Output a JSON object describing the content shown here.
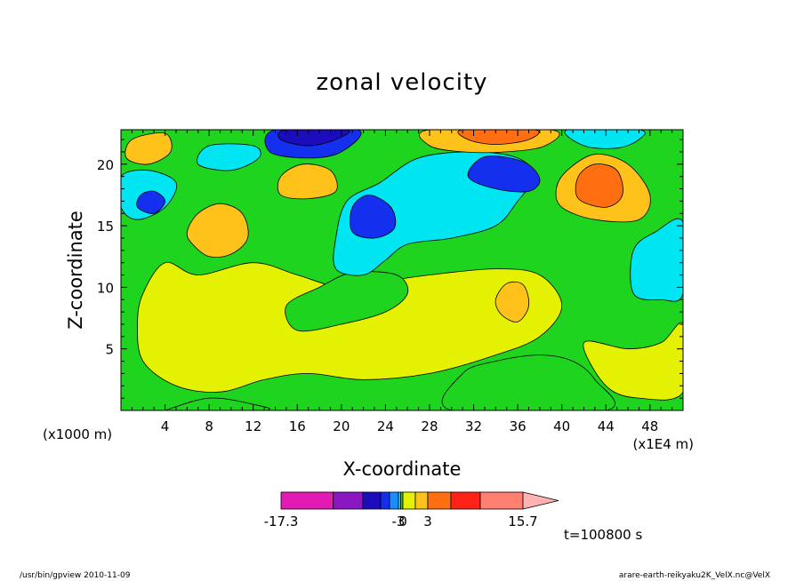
{
  "chart_data": {
    "type": "heatmap",
    "subtype": "filled-contour",
    "title": "zonal velocity",
    "xlabel": "X-coordinate",
    "ylabel": "Z-coordinate",
    "x_unit_left": "(x1000 m)",
    "x_unit_right": "(x1E4 m)",
    "xlim": [
      0,
      51
    ],
    "ylim": [
      0,
      22.8
    ],
    "x_ticks": [
      4,
      8,
      12,
      16,
      20,
      24,
      28,
      32,
      36,
      40,
      44,
      48
    ],
    "y_ticks": [
      5,
      10,
      15,
      20
    ],
    "colorbar": {
      "labels": [
        {
          "value": -17.3,
          "text": "-17.3"
        },
        {
          "value": -3,
          "text": "-3"
        },
        {
          "value": 0,
          "text": "0"
        },
        {
          "value": 3,
          "text": "3"
        },
        {
          "value": 15.7,
          "text": "15.7"
        }
      ],
      "bins": [
        {
          "from": -17.3,
          "to": -12,
          "color": "#e21bb3"
        },
        {
          "from": -12,
          "to": -9,
          "color": "#8a17c1"
        },
        {
          "from": -9,
          "to": -6,
          "color": "#1b0dbb"
        },
        {
          "from": -6,
          "to": -4.5,
          "color": "#1430ee"
        },
        {
          "from": -4.5,
          "to": -3,
          "color": "#1c8bff"
        },
        {
          "from": -3,
          "to": -1.5,
          "color": "#00e5f2"
        },
        {
          "from": -1.5,
          "to": 0,
          "color": "#1ed41e"
        },
        {
          "from": 0,
          "to": 1.5,
          "color": "#e4f100"
        },
        {
          "from": 1.5,
          "to": 3,
          "color": "#ffc21b"
        },
        {
          "from": 3,
          "to": 6,
          "color": "#ff6f12"
        },
        {
          "from": 6,
          "to": 9,
          "color": "#ff2216"
        },
        {
          "from": 9,
          "to": 15.7,
          "color": "#ff7f70"
        }
      ],
      "extend_color": "#ffb3b0"
    },
    "time_label": "t=100800 s",
    "regions": [
      {
        "level": 1.5,
        "color": "#e4f100",
        "path": [
          [
            4,
            12
          ],
          [
            7,
            11
          ],
          [
            12,
            12
          ],
          [
            16,
            11
          ],
          [
            20,
            10
          ],
          [
            24,
            10.5
          ],
          [
            28,
            11
          ],
          [
            34,
            11.5
          ],
          [
            38,
            11
          ],
          [
            40,
            8.5
          ],
          [
            38,
            6
          ],
          [
            34,
            4.5
          ],
          [
            28,
            3
          ],
          [
            22,
            2.5
          ],
          [
            17,
            3
          ],
          [
            13,
            2.5
          ],
          [
            9,
            1.5
          ],
          [
            5,
            2
          ],
          [
            2,
            4
          ],
          [
            1.5,
            7
          ],
          [
            2,
            9.5
          ]
        ]
      },
      {
        "level": 1.5,
        "color": "#e4f100",
        "path": [
          [
            42,
            5.5
          ],
          [
            46,
            5
          ],
          [
            49,
            5.5
          ],
          [
            51,
            7
          ],
          [
            51,
            1.5
          ],
          [
            47,
            1
          ],
          [
            44,
            2
          ]
        ]
      },
      {
        "level": -1.5,
        "color": "#1ed41e",
        "path": [
          [
            16,
            6.5
          ],
          [
            20,
            7
          ],
          [
            24,
            8
          ],
          [
            26,
            9.5
          ],
          [
            25,
            11
          ],
          [
            21,
            11.2
          ],
          [
            18,
            10
          ],
          [
            15,
            8.5
          ]
        ]
      },
      {
        "level": -1.5,
        "color": "#1ed41e",
        "path": [
          [
            30,
            0
          ],
          [
            31,
            3
          ],
          [
            34,
            4
          ],
          [
            38,
            4.5
          ],
          [
            41,
            4
          ],
          [
            43,
            2.5
          ],
          [
            44,
            0
          ]
        ]
      },
      {
        "level": -1.5,
        "color": "#1ed41e",
        "path": [
          [
            4,
            0
          ],
          [
            8,
            1
          ],
          [
            12,
            0.5
          ],
          [
            13,
            0
          ],
          [
            4,
            0
          ]
        ]
      },
      {
        "level": 3,
        "color": "#ffc21b",
        "path": [
          [
            6.5,
            13.5
          ],
          [
            8,
            12.5
          ],
          [
            10,
            12.7
          ],
          [
            11.5,
            14
          ],
          [
            11,
            16
          ],
          [
            9,
            16.8
          ],
          [
            7,
            16
          ],
          [
            6,
            14.5
          ]
        ]
      },
      {
        "level": 3,
        "color": "#ffc21b",
        "path": [
          [
            34.5,
            7.8
          ],
          [
            36,
            7.2
          ],
          [
            37,
            8.5
          ],
          [
            36.5,
            10.2
          ],
          [
            35,
            10.3
          ],
          [
            34,
            9
          ]
        ]
      },
      {
        "level": 3,
        "color": "#ffc21b",
        "path": [
          [
            40,
            16.5
          ],
          [
            43,
            15.5
          ],
          [
            47,
            15.5
          ],
          [
            48,
            17.5
          ],
          [
            46,
            20
          ],
          [
            43,
            20.8
          ],
          [
            40.5,
            19.5
          ],
          [
            39.5,
            18
          ]
        ]
      },
      {
        "level": 3,
        "color": "#ffc21b",
        "path": [
          [
            14.5,
            17.5
          ],
          [
            17,
            17.2
          ],
          [
            19.5,
            17.8
          ],
          [
            19,
            19.5
          ],
          [
            16.5,
            20
          ],
          [
            14.5,
            19
          ]
        ]
      },
      {
        "level": 6,
        "color": "#ff6f12",
        "path": [
          [
            41.5,
            17.2
          ],
          [
            44,
            16.5
          ],
          [
            45.5,
            17.5
          ],
          [
            45,
            19.5
          ],
          [
            43,
            20
          ],
          [
            41.5,
            19
          ]
        ]
      },
      {
        "level": -3,
        "color": "#00e5f2",
        "path": [
          [
            19.5,
            11.5
          ],
          [
            22,
            11
          ],
          [
            24,
            12.2
          ],
          [
            26,
            13.5
          ],
          [
            30,
            14
          ],
          [
            34,
            15
          ],
          [
            36,
            17
          ],
          [
            37.5,
            19
          ],
          [
            36,
            20.5
          ],
          [
            32,
            21
          ],
          [
            27,
            20.5
          ],
          [
            23.5,
            18.5
          ],
          [
            20.5,
            17
          ],
          [
            19.5,
            14
          ]
        ]
      },
      {
        "level": -3,
        "color": "#00e5f2",
        "path": [
          [
            46.5,
            9.5
          ],
          [
            49,
            9
          ],
          [
            51,
            9.5
          ],
          [
            51,
            15.3
          ],
          [
            48.5,
            14.5
          ],
          [
            46.5,
            13
          ]
        ]
      },
      {
        "level": -3,
        "color": "#00e5f2",
        "path": [
          [
            0,
            16.5
          ],
          [
            1.5,
            15.5
          ],
          [
            4,
            16.5
          ],
          [
            5,
            18.5
          ],
          [
            2.5,
            19.5
          ],
          [
            0,
            19
          ]
        ]
      },
      {
        "level": -3,
        "color": "#00e5f2",
        "path": [
          [
            7,
            20
          ],
          [
            10,
            19.5
          ],
          [
            12.5,
            20.5
          ],
          [
            12,
            21.5
          ],
          [
            8,
            21.5
          ]
        ]
      },
      {
        "level": -3,
        "color": "#00e5f2",
        "path": [
          [
            40.5,
            22.8
          ],
          [
            42,
            21.5
          ],
          [
            45,
            21.3
          ],
          [
            47,
            22
          ],
          [
            47,
            22.8
          ]
        ]
      },
      {
        "level": -6,
        "color": "#1430ee",
        "path": [
          [
            21,
            14.5
          ],
          [
            23,
            14
          ],
          [
            24.8,
            14.8
          ],
          [
            24.5,
            16.5
          ],
          [
            22.5,
            17.5
          ],
          [
            21,
            16.5
          ]
        ]
      },
      {
        "level": -6,
        "color": "#1430ee",
        "path": [
          [
            31.5,
            19
          ],
          [
            34,
            18
          ],
          [
            37,
            17.8
          ],
          [
            38,
            18.8
          ],
          [
            36.5,
            20.2
          ],
          [
            33,
            20.6
          ]
        ]
      },
      {
        "level": -6,
        "color": "#1430ee",
        "path": [
          [
            1.5,
            16.5
          ],
          [
            3,
            16
          ],
          [
            4,
            17
          ],
          [
            3,
            17.8
          ],
          [
            1.8,
            17.5
          ]
        ]
      },
      {
        "level": -6,
        "color": "#1430ee",
        "path": [
          [
            13.5,
            21
          ],
          [
            17,
            20.5
          ],
          [
            20,
            21
          ],
          [
            21.5,
            22.8
          ],
          [
            14,
            22.8
          ]
        ]
      },
      {
        "level": -9,
        "color": "#1b0dbb",
        "path": [
          [
            14.5,
            22
          ],
          [
            17,
            21.5
          ],
          [
            19.5,
            22
          ],
          [
            20.5,
            22.8
          ],
          [
            15,
            22.8
          ]
        ]
      },
      {
        "level": 3,
        "color": "#ffc21b",
        "path": [
          [
            28,
            21.5
          ],
          [
            31,
            21
          ],
          [
            35,
            21
          ],
          [
            38.5,
            21.5
          ],
          [
            39,
            22.8
          ],
          [
            28,
            22.8
          ]
        ]
      },
      {
        "level": 3,
        "color": "#ffc21b",
        "path": [
          [
            0.5,
            20.5
          ],
          [
            2.5,
            20
          ],
          [
            4.5,
            21
          ],
          [
            4,
            22.5
          ],
          [
            1,
            22
          ]
        ]
      },
      {
        "level": 6,
        "color": "#ff6f12",
        "path": [
          [
            31.5,
            22
          ],
          [
            34,
            21.6
          ],
          [
            37,
            22
          ],
          [
            37.5,
            22.8
          ],
          [
            31,
            22.8
          ]
        ]
      }
    ]
  },
  "footer": {
    "left": "/usr/bin/gpview 2010-11-09",
    "right": "arare-earth-reikyaku2K_VelX.nc@VelX"
  }
}
